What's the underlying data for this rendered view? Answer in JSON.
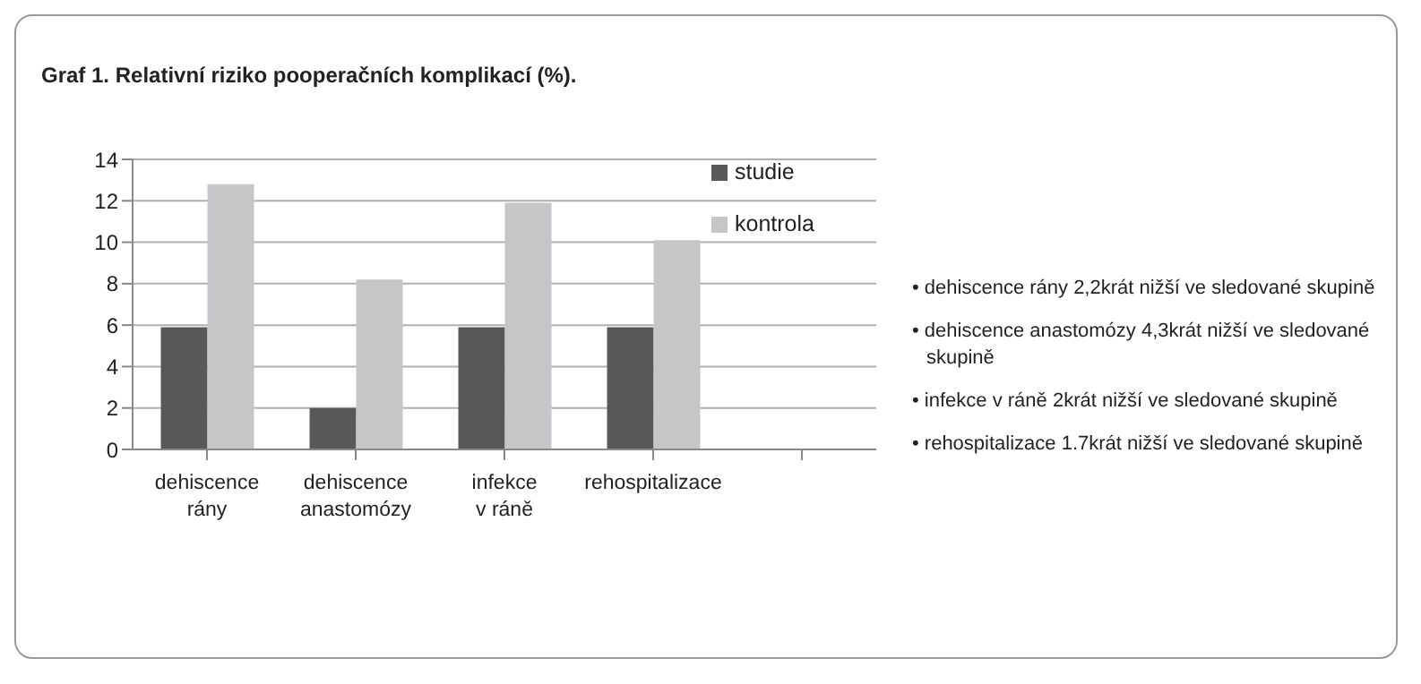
{
  "chart_data": {
    "type": "bar",
    "title": "Graf 1. Relativní riziko pooperačních komplikací (%).",
    "categories": [
      "dehiscence rány",
      "dehiscence anastomózy",
      "infekce v ráně",
      "rehospitalizace",
      null
    ],
    "series": [
      {
        "name": "studie",
        "color": "#58585a",
        "values": [
          5.9,
          2.0,
          5.9,
          5.9,
          null
        ]
      },
      {
        "name": "kontrola",
        "color": "#c6c6c8",
        "values": [
          12.8,
          8.2,
          11.9,
          10.1,
          null
        ]
      }
    ],
    "ylim": [
      0,
      14
    ],
    "yticks": [
      0,
      2,
      4,
      6,
      8,
      10,
      12,
      14
    ],
    "grid": "y",
    "legend": "top right",
    "annotations": [
      "• dehiscence rány 2,2krát nižší ve sledované skupině",
      "• dehiscence anastomózy 4,3krát nižší ve sledované skupině",
      "• infekce v ráně 2krát nižší ve sledované skupině",
      "• rehospitalizace 1.7krát nižší ve sledované skupině"
    ]
  }
}
